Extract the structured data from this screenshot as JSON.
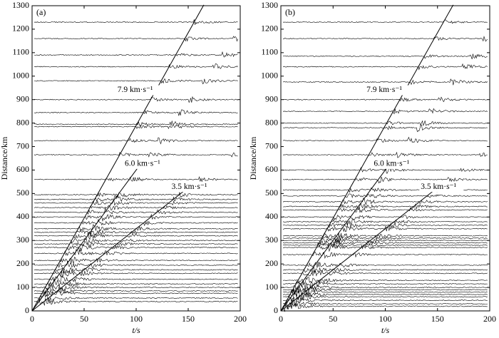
{
  "chart_data": [
    {
      "type": "record-section",
      "panel_label": "(a)",
      "xlabel": "t/s",
      "ylabel": "Distance/km",
      "xlim": [
        0,
        200
      ],
      "ylim": [
        0,
        1300
      ],
      "xticks": [
        0,
        50,
        100,
        150,
        200
      ],
      "yticks": [
        0,
        100,
        200,
        300,
        400,
        500,
        600,
        700,
        800,
        900,
        1000,
        1100,
        1200,
        1300
      ],
      "traces": [
        40,
        55,
        75,
        85,
        100,
        115,
        135,
        160,
        175,
        195,
        215,
        245,
        270,
        285,
        300,
        320,
        335,
        350,
        375,
        400,
        420,
        440,
        460,
        475,
        495,
        560,
        665,
        725,
        785,
        795,
        845,
        900,
        980,
        1040,
        1090,
        1160,
        1230
      ],
      "velocity_lines": [
        {
          "label": "7.9 km·s⁻¹",
          "velocity": 7.9,
          "t_end": 165
        },
        {
          "label": "6.0 km·s⁻¹",
          "velocity": 6.0,
          "t_end": 105
        },
        {
          "label": "3.5 km·s⁻¹",
          "velocity": 3.5,
          "t_end": 150
        }
      ]
    },
    {
      "type": "record-section",
      "panel_label": "(b)",
      "xlabel": "t/s",
      "ylabel": "Distance/km",
      "xlim": [
        0,
        200
      ],
      "ylim": [
        0,
        1300
      ],
      "xticks": [
        0,
        50,
        100,
        150,
        200
      ],
      "yticks": [
        0,
        100,
        200,
        300,
        400,
        500,
        600,
        700,
        800,
        900,
        1000,
        1100,
        1200,
        1300
      ],
      "traces": [
        20,
        30,
        45,
        60,
        70,
        80,
        90,
        100,
        115,
        130,
        160,
        175,
        195,
        240,
        270,
        280,
        290,
        300,
        310,
        320,
        350,
        365,
        380,
        400,
        430,
        445,
        465,
        490,
        515,
        560,
        600,
        665,
        725,
        780,
        800,
        850,
        900,
        975,
        1040,
        1085,
        1160,
        1230
      ],
      "velocity_lines": [
        {
          "label": "7.9 km·s⁻¹",
          "velocity": 7.9,
          "t_end": 165
        },
        {
          "label": "6.0 km·s⁻¹",
          "velocity": 6.0,
          "t_end": 105
        },
        {
          "label": "3.5 km·s⁻¹",
          "velocity": 3.5,
          "t_end": 150
        }
      ]
    }
  ]
}
